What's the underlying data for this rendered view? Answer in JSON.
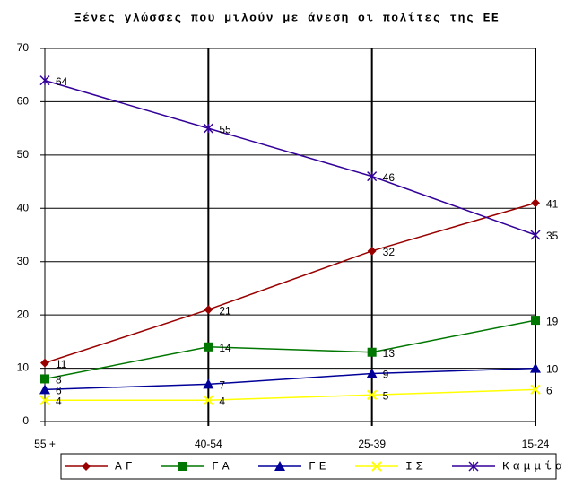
{
  "chart_data": {
    "type": "line",
    "title": "Ξένες γλώσσες που μιλούν με άνεση οι πολίτες της ΕΕ",
    "categories": [
      "55 +",
      "40-54",
      "25-39",
      "15-24"
    ],
    "ylim": [
      0,
      70
    ],
    "yticks": [
      0,
      10,
      20,
      30,
      40,
      50,
      60,
      70
    ],
    "grid": true,
    "series": [
      {
        "name": "ΑΓ",
        "color": "#990000",
        "marker": "diamond",
        "values": [
          11,
          21,
          32,
          41
        ]
      },
      {
        "name": "ΓΑ",
        "color": "#007700",
        "marker": "square",
        "values": [
          8,
          14,
          13,
          19
        ]
      },
      {
        "name": "ΓΕ",
        "color": "#000099",
        "marker": "triangle",
        "values": [
          6,
          7,
          9,
          10
        ]
      },
      {
        "name": "ΙΣ",
        "color": "#ffff00",
        "marker": "x",
        "values": [
          4,
          4,
          5,
          6
        ]
      },
      {
        "name": "Καμμία",
        "color": "#330099",
        "marker": "star",
        "values": [
          64,
          55,
          46,
          35
        ]
      }
    ]
  }
}
